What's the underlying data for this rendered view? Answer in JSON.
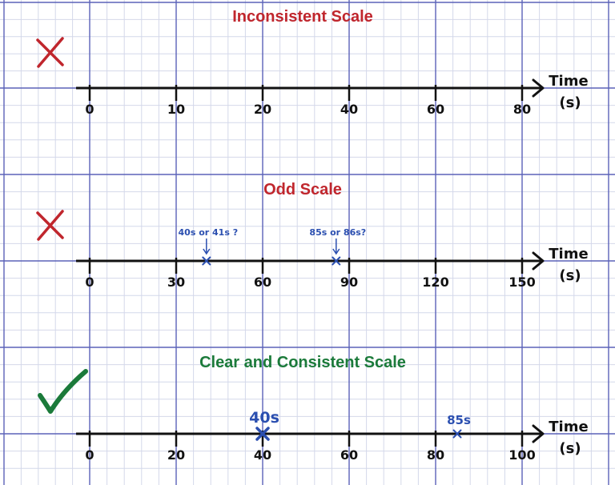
{
  "colors": {
    "grid_minor": "#d4d8ea",
    "grid_major": "#5b62b8",
    "axis": "#111111",
    "wrong": "#c0262d",
    "right": "#1b7a3a",
    "mark": "#2b4fb0",
    "background": "#ffffff"
  },
  "panels": [
    {
      "title": "Inconsistent Scale",
      "verdict": "cross",
      "title_color": "#c0262d",
      "axis_label_line1": "Time",
      "axis_label_line2": "(s)",
      "ticks": [
        "0",
        "10",
        "20",
        "40",
        "60",
        "80"
      ],
      "points": []
    },
    {
      "title": "Odd Scale",
      "verdict": "cross",
      "title_color": "#c0262d",
      "axis_label_line1": "Time",
      "axis_label_line2": "(s)",
      "ticks": [
        "0",
        "30",
        "60",
        "90",
        "120",
        "150"
      ],
      "points": [
        {
          "value": 40.5,
          "label": "40s or 41s ?",
          "arrow": true
        },
        {
          "value": 85.5,
          "label": "85s or 86s?",
          "arrow": true
        }
      ]
    },
    {
      "title": "Clear and Consistent Scale",
      "verdict": "check",
      "title_color": "#1b7a3a",
      "axis_label_line1": "Time",
      "axis_label_line2": "(s)",
      "ticks": [
        "0",
        "20",
        "40",
        "60",
        "80",
        "100"
      ],
      "points": [
        {
          "value": 40,
          "label": "40s",
          "arrow": false,
          "big": true
        },
        {
          "value": 85,
          "label": "85s",
          "arrow": false
        }
      ]
    }
  ]
}
